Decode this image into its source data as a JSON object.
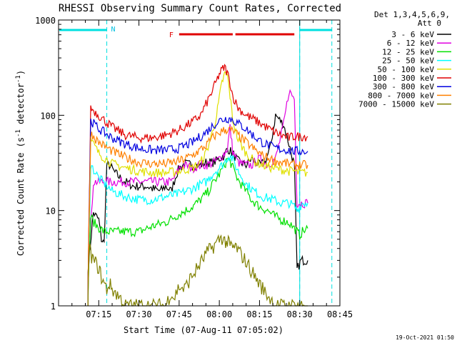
{
  "chart_data": {
    "type": "line",
    "title": "RHESSI Observing Summary Count Rates, Corrected",
    "xlabel": "Start Time (07-Aug-11 07:05:02)",
    "ylabel_main": "Corrected Count Rate (s",
    "ylabel_sup1": "-1",
    "ylabel_mid": " detector",
    "ylabel_sup2": "-1",
    "ylabel_end": ")",
    "x_start": "07-Aug-11 07:05:02",
    "xlim_minutes": [
      0,
      105
    ],
    "ylim": [
      1,
      1000
    ],
    "y_scale": "log",
    "x_ticks": [
      {
        "t": 15,
        "label": "07:15"
      },
      {
        "t": 30,
        "label": "07:30"
      },
      {
        "t": 45,
        "label": "07:45"
      },
      {
        "t": 60,
        "label": "08:00"
      },
      {
        "t": 75,
        "label": "08:15"
      },
      {
        "t": 90,
        "label": "08:30"
      },
      {
        "t": 105,
        "label": "08:45"
      }
    ],
    "y_ticks": [
      {
        "v": 1,
        "label": "1"
      },
      {
        "v": 10,
        "label": "10"
      },
      {
        "v": 100,
        "label": "100"
      },
      {
        "v": 1000,
        "label": "1000"
      }
    ],
    "legend_header_1": "Det 1,3,4,5,6,9,",
    "legend_header_2": "Att 0",
    "legend_position": "right",
    "timestamp": "19-Oct-2021 01:50",
    "flag_labels": {
      "night": "N",
      "flare": "F"
    },
    "night_marks_minutes": [
      18,
      90,
      102
    ],
    "flare_bars_minutes": [
      [
        45,
        65
      ],
      [
        66,
        88
      ]
    ],
    "series": [
      {
        "name": "3 - 6 keV",
        "color": "#000000",
        "t": [
          11,
          13,
          15,
          16,
          17,
          18,
          19,
          21,
          23,
          25,
          28,
          30,
          33,
          35,
          38,
          40,
          42,
          44,
          45,
          47,
          50,
          53,
          55,
          58,
          60,
          62,
          63,
          65,
          67,
          70,
          72,
          75,
          77,
          79,
          81,
          84,
          86,
          88,
          89,
          90.5,
          91,
          93
        ],
        "v": [
          2.5,
          9.5,
          8,
          5,
          4.5,
          30,
          30,
          25,
          22,
          20,
          18,
          18,
          18,
          17,
          16,
          18,
          16,
          24,
          28,
          31,
          30,
          30,
          32,
          32,
          35,
          38,
          45,
          40,
          33,
          30,
          35,
          30,
          32,
          45,
          100,
          80,
          50,
          30,
          2.4,
          3,
          3,
          3
        ]
      },
      {
        "name": "6 - 12 keV",
        "color": "#e000e0",
        "t": [
          11,
          13,
          15,
          18,
          20,
          23,
          25,
          28,
          30,
          33,
          35,
          38,
          40,
          42,
          44,
          45,
          47,
          50,
          53,
          55,
          58,
          60,
          62,
          63,
          64,
          65,
          67,
          70,
          72,
          75,
          78,
          81,
          84,
          86,
          88,
          89,
          90,
          91,
          93
        ],
        "v": [
          2.2,
          20,
          20,
          20,
          20,
          20,
          20,
          20,
          20,
          20,
          20,
          20,
          20,
          20,
          24,
          28,
          30,
          28,
          30,
          30,
          32,
          35,
          40,
          45,
          75,
          42,
          32,
          30,
          30,
          35,
          30,
          35,
          80,
          180,
          150,
          12,
          12,
          12,
          12
        ]
      },
      {
        "name": "12 - 25 keV",
        "color": "#00e000",
        "t": [
          11,
          12,
          14,
          17,
          20,
          23,
          26,
          30,
          33,
          36,
          40,
          43,
          46,
          50,
          53,
          56,
          58,
          60,
          62,
          63,
          64,
          65,
          67,
          70,
          72,
          75,
          78,
          80,
          83,
          86,
          88,
          89,
          90,
          91,
          93
        ],
        "v": [
          1.5,
          8.5,
          7,
          6,
          6,
          6,
          6,
          6,
          6.5,
          7,
          7.5,
          8.5,
          9.5,
          11,
          13,
          16,
          20,
          24,
          30,
          35,
          33,
          28,
          21,
          16,
          13,
          11,
          10,
          9,
          8,
          7.5,
          6.5,
          6,
          5.5,
          6,
          6.5
        ]
      },
      {
        "name": "25 - 50 keV",
        "color": "#00ffff",
        "t": [
          11,
          12,
          15,
          20,
          25,
          30,
          35,
          40,
          45,
          50,
          55,
          58,
          60,
          62,
          63,
          64,
          65,
          67,
          70,
          73,
          76,
          80,
          83,
          86,
          88,
          89,
          90,
          91,
          93
        ],
        "v": [
          1.6,
          30,
          22,
          16,
          14,
          13,
          13,
          14,
          15,
          17,
          20,
          25,
          28,
          32,
          36,
          38,
          34,
          26,
          19,
          16,
          14,
          13,
          12,
          12,
          11,
          10,
          11,
          12,
          12
        ]
      },
      {
        "name": "50 - 100 keV",
        "color": "#e0e000",
        "t": [
          11,
          12,
          15,
          20,
          25,
          30,
          35,
          40,
          45,
          50,
          53,
          55,
          57,
          59,
          60,
          61,
          62,
          63,
          64,
          65,
          67,
          70,
          73,
          76,
          80,
          83,
          86,
          88,
          89,
          90,
          91,
          93
        ],
        "v": [
          1.8,
          55,
          40,
          31,
          28,
          26,
          25,
          25,
          26,
          28,
          32,
          40,
          60,
          100,
          150,
          220,
          270,
          260,
          160,
          90,
          55,
          40,
          33,
          30,
          28,
          27,
          26,
          26,
          25,
          25,
          25,
          25
        ]
      },
      {
        "name": "100 - 300 keV",
        "color": "#e00000",
        "t": [
          11,
          12,
          15,
          20,
          25,
          30,
          35,
          40,
          45,
          50,
          53,
          55,
          57,
          59,
          60,
          61,
          62,
          63,
          64,
          65,
          67,
          70,
          73,
          76,
          80,
          83,
          86,
          88,
          89,
          90,
          91,
          93
        ],
        "v": [
          1.8,
          120,
          100,
          75,
          62,
          58,
          58,
          62,
          70,
          85,
          100,
          130,
          170,
          230,
          270,
          300,
          320,
          280,
          220,
          160,
          120,
          100,
          90,
          80,
          68,
          62,
          58,
          60,
          60,
          60,
          60,
          60
        ]
      },
      {
        "name": "300 - 800 keV",
        "color": "#0000e0",
        "t": [
          11,
          12,
          15,
          20,
          25,
          30,
          35,
          40,
          45,
          50,
          55,
          58,
          60,
          62,
          63,
          64,
          65,
          67,
          70,
          73,
          76,
          80,
          83,
          86,
          88,
          89,
          90,
          91,
          93
        ],
        "v": [
          1.8,
          88,
          72,
          58,
          50,
          45,
          43,
          43,
          45,
          52,
          66,
          80,
          88,
          92,
          93,
          92,
          90,
          82,
          72,
          60,
          52,
          46,
          44,
          43,
          42,
          42,
          42,
          42,
          42
        ]
      },
      {
        "name": "800 - 7000 keV",
        "color": "#ff8000",
        "t": [
          11,
          12,
          15,
          20,
          25,
          30,
          35,
          40,
          45,
          50,
          55,
          58,
          60,
          62,
          63,
          64,
          65,
          67,
          70,
          73,
          76,
          80,
          83,
          86,
          88,
          89,
          90,
          91,
          93
        ],
        "v": [
          1.8,
          65,
          52,
          42,
          36,
          32,
          31,
          31,
          33,
          38,
          48,
          60,
          66,
          70,
          71,
          70,
          68,
          62,
          52,
          44,
          38,
          34,
          32,
          31,
          30,
          30,
          30,
          30,
          30
        ]
      },
      {
        "name": "7000 - 15000 keV",
        "color": "#808000",
        "t": [
          11,
          11.5,
          12,
          13,
          15,
          16,
          17,
          18,
          19,
          20,
          22,
          24,
          25,
          27,
          29,
          31,
          33,
          35,
          40,
          42,
          43,
          45,
          47,
          49,
          51,
          53,
          55,
          57,
          59,
          60,
          61,
          62,
          63,
          64,
          65,
          66,
          67,
          69,
          71,
          73,
          75,
          77,
          79,
          80,
          81,
          83,
          86,
          88,
          89,
          90,
          91,
          93
        ],
        "v": [
          1.1,
          4.5,
          3.5,
          3,
          2.5,
          2,
          1.7,
          1.5,
          1.7,
          1.5,
          1.3,
          1.1,
          1,
          1,
          1,
          1,
          1,
          1,
          1,
          1.4,
          1.2,
          1.6,
          1.5,
          1.9,
          2.3,
          2.8,
          3.5,
          4,
          4.6,
          5,
          5.2,
          4.8,
          4.6,
          4.3,
          4,
          4.2,
          3.8,
          3.2,
          2.6,
          2.1,
          1.7,
          1.4,
          1.2,
          1.1,
          1,
          1,
          1,
          1,
          1,
          1,
          1,
          1
        ]
      }
    ]
  }
}
